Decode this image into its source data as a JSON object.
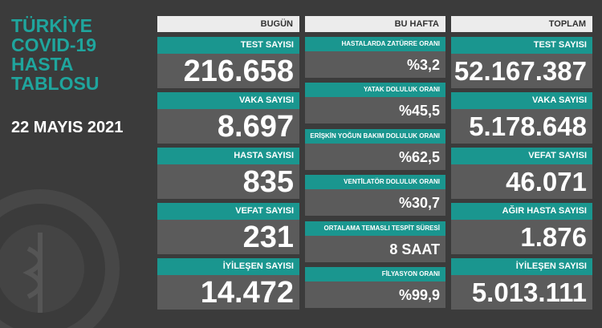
{
  "header": {
    "title_lines": [
      "TÜRKİYE",
      "COVID-19",
      "HASTA",
      "TABLOSU"
    ],
    "date": "22 MAYIS 2021"
  },
  "columns": [
    {
      "heading": "BUGÜN",
      "cards": [
        {
          "label": "TEST SAYISI",
          "value": "216.658"
        },
        {
          "label": "VAKA SAYISI",
          "value": "8.697"
        },
        {
          "label": "HASTA SAYISI",
          "value": "835"
        },
        {
          "label": "VEFAT SAYISI",
          "value": "231"
        },
        {
          "label": "İYİLEŞEN SAYISI",
          "value": "14.472"
        }
      ]
    },
    {
      "heading": "BU HAFTA",
      "cards": [
        {
          "label": "HASTALARDA ZATÜRRE ORANI",
          "value": "%3,2"
        },
        {
          "label": "YATAK DOLULUK ORANI",
          "value": "%45,5"
        },
        {
          "label": "ERİŞKİN YOĞUN BAKIM DOLULUK ORANI",
          "value": "%62,5"
        },
        {
          "label": "VENTİLATÖR DOLULUK ORANI",
          "value": "%30,7"
        },
        {
          "label": "ORTALAMA TEMASLI TESPİT SÜRESİ",
          "value": "8 SAAT"
        },
        {
          "label": "FİLYASYON ORANI",
          "value": "%99,9"
        }
      ]
    },
    {
      "heading": "TOPLAM",
      "cards": [
        {
          "label": "TEST SAYISI",
          "value": "52.167.387"
        },
        {
          "label": "VAKA SAYISI",
          "value": "5.178.648"
        },
        {
          "label": "VEFAT SAYISI",
          "value": "46.071"
        },
        {
          "label": "AĞIR HASTA SAYISI",
          "value": "1.876"
        },
        {
          "label": "İYİLEŞEN SAYISI",
          "value": "5.013.111"
        }
      ]
    }
  ]
}
